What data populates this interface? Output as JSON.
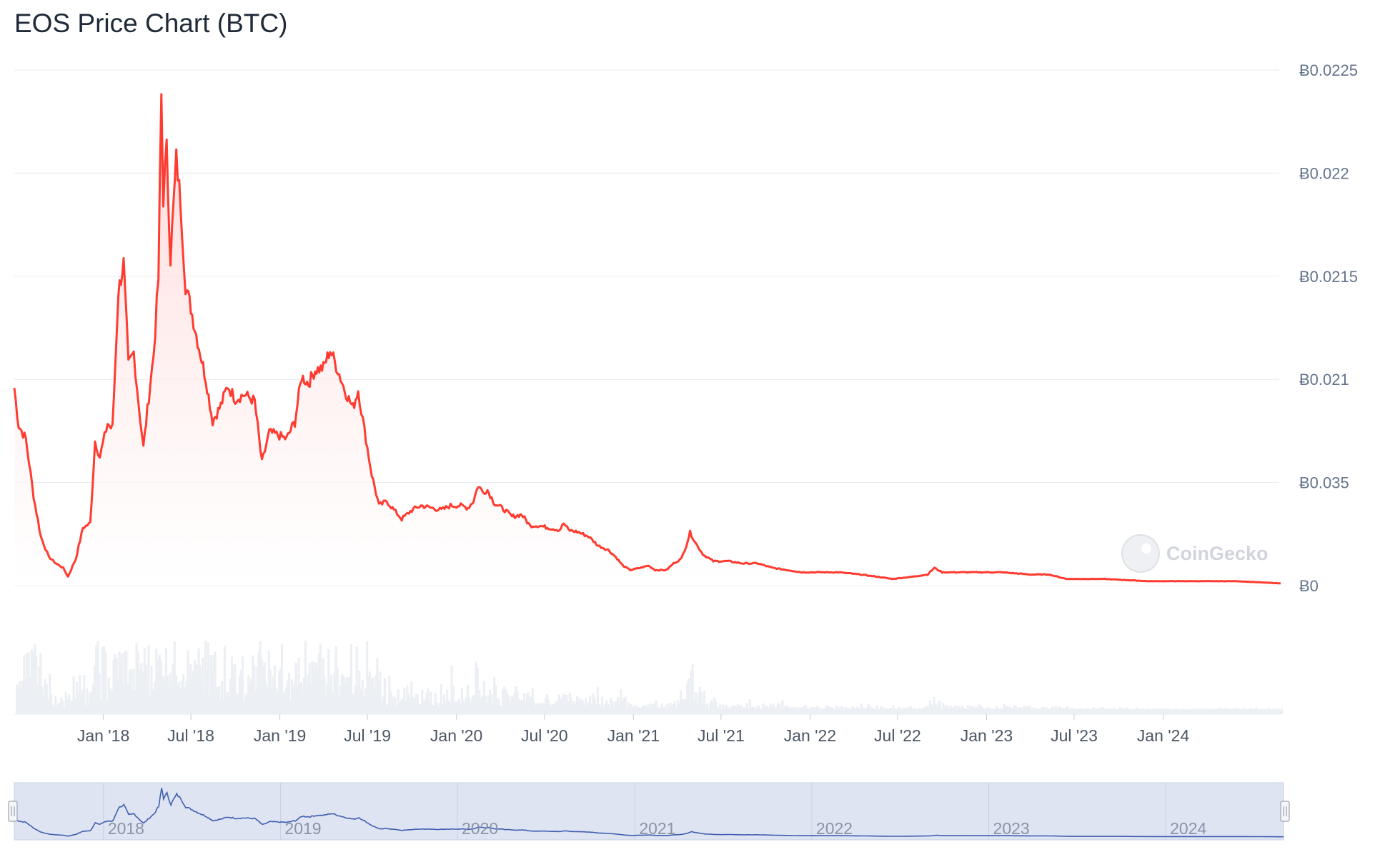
{
  "title": "EOS Price Chart (BTC)",
  "watermark": "CoinGecko",
  "colors": {
    "price_line": "#ff3b30",
    "area_top": "#ffd6d6",
    "volume": "#eceff3",
    "navigator_bg": "#dfe4f2",
    "navigator_line": "#3f5fb0",
    "grid": "#e6e9ee",
    "axis_text": "#64748b"
  },
  "chart_data": {
    "type": "line",
    "title": "EOS Price Chart (BTC)",
    "y_axis_ticks": [
      "Ƀ0",
      "Ƀ0.035",
      "Ƀ0.021",
      "Ƀ0.0215",
      "Ƀ0.022",
      "Ƀ0.0225"
    ],
    "y_axis_position": "right",
    "x_axis_ticks": [
      "Jan '18",
      "Jul '18",
      "Jan '19",
      "Jul '19",
      "Jan '20",
      "Jul '20",
      "Jan '21",
      "Jul '21",
      "Jan '22",
      "Jul '22",
      "Jan '23",
      "Jul '23",
      "Jan '24"
    ],
    "navigator_ticks": [
      "2018",
      "2019",
      "2020",
      "2021",
      "2022",
      "2023",
      "2024"
    ],
    "x_start": "2017-07-01",
    "x_end": "2024-08-31",
    "grid": true,
    "series": [
      {
        "points": [
          [
            "2017-07-01",
            0.00089
          ],
          [
            "2017-07-10",
            0.00072
          ],
          [
            "2017-07-25",
            0.00066
          ],
          [
            "2017-08-10",
            0.0004
          ],
          [
            "2017-08-25",
            0.00022
          ],
          [
            "2017-09-10",
            0.00013
          ],
          [
            "2017-09-25",
            0.0001
          ],
          [
            "2017-10-10",
            8e-05
          ],
          [
            "2017-10-20",
            4e-05
          ],
          [
            "2017-11-05",
            0.00012
          ],
          [
            "2017-11-20",
            0.00026
          ],
          [
            "2017-12-05",
            0.00028
          ],
          [
            "2017-12-15",
            0.00065
          ],
          [
            "2017-12-25",
            0.00058
          ],
          [
            "2018-01-10",
            0.00073
          ],
          [
            "2018-01-20",
            0.0007
          ],
          [
            "2018-02-01",
            0.00132
          ],
          [
            "2018-02-12",
            0.00145
          ],
          [
            "2018-02-22",
            0.00099
          ],
          [
            "2018-03-05",
            0.00105
          ],
          [
            "2018-03-15",
            0.00082
          ],
          [
            "2018-03-25",
            0.00062
          ],
          [
            "2018-04-05",
            0.00085
          ],
          [
            "2018-04-15",
            0.00104
          ],
          [
            "2018-04-25",
            0.00138
          ],
          [
            "2018-05-01",
            0.0022
          ],
          [
            "2018-05-05",
            0.00175
          ],
          [
            "2018-05-12",
            0.00196
          ],
          [
            "2018-05-20",
            0.00148
          ],
          [
            "2018-06-01",
            0.00192
          ],
          [
            "2018-06-10",
            0.00172
          ],
          [
            "2018-06-20",
            0.00135
          ],
          [
            "2018-07-01",
            0.00125
          ],
          [
            "2018-07-15",
            0.0011
          ],
          [
            "2018-08-01",
            0.00093
          ],
          [
            "2018-08-15",
            0.00074
          ],
          [
            "2018-09-01",
            0.00081
          ],
          [
            "2018-09-15",
            0.0009
          ],
          [
            "2018-10-01",
            0.00084
          ],
          [
            "2018-10-20",
            0.00086
          ],
          [
            "2018-11-10",
            0.00083
          ],
          [
            "2018-11-25",
            0.00055
          ],
          [
            "2018-12-10",
            0.00069
          ],
          [
            "2018-12-25",
            0.00068
          ],
          [
            "2019-01-15",
            0.00066
          ],
          [
            "2019-02-01",
            0.00074
          ],
          [
            "2019-02-15",
            0.00094
          ],
          [
            "2019-03-01",
            0.00091
          ],
          [
            "2019-03-15",
            0.00097
          ],
          [
            "2019-04-01",
            0.00098
          ],
          [
            "2019-04-15",
            0.00106
          ],
          [
            "2019-05-01",
            0.00097
          ],
          [
            "2019-05-15",
            0.00088
          ],
          [
            "2019-06-01",
            0.0008
          ],
          [
            "2019-06-12",
            0.00088
          ],
          [
            "2019-06-25",
            0.0007
          ],
          [
            "2019-07-10",
            0.0005
          ],
          [
            "2019-07-25",
            0.00036
          ],
          [
            "2019-08-10",
            0.00038
          ],
          [
            "2019-08-25",
            0.00034
          ],
          [
            "2019-09-10",
            0.0003
          ],
          [
            "2019-10-01",
            0.00034
          ],
          [
            "2019-10-20",
            0.00036
          ],
          [
            "2019-11-10",
            0.00035
          ],
          [
            "2019-12-01",
            0.00034
          ],
          [
            "2019-12-20",
            0.00036
          ],
          [
            "2020-01-10",
            0.00036
          ],
          [
            "2020-01-25",
            0.00035
          ],
          [
            "2020-02-05",
            0.00038
          ],
          [
            "2020-02-15",
            0.00045
          ],
          [
            "2020-02-25",
            0.00042
          ],
          [
            "2020-03-05",
            0.00043
          ],
          [
            "2020-03-20",
            0.00037
          ],
          [
            "2020-04-10",
            0.00034
          ],
          [
            "2020-04-25",
            0.00031
          ],
          [
            "2020-05-15",
            0.00032
          ],
          [
            "2020-06-01",
            0.00027
          ],
          [
            "2020-06-20",
            0.00027
          ],
          [
            "2020-07-10",
            0.00026
          ],
          [
            "2020-08-01",
            0.00025
          ],
          [
            "2020-08-10",
            0.00028
          ],
          [
            "2020-08-20",
            0.00025
          ],
          [
            "2020-09-10",
            0.00024
          ],
          [
            "2020-10-01",
            0.00022
          ],
          [
            "2020-10-20",
            0.00018
          ],
          [
            "2020-11-10",
            0.00016
          ],
          [
            "2020-11-25",
            0.00013
          ],
          [
            "2020-12-10",
            9e-05
          ],
          [
            "2020-12-25",
            7e-05
          ],
          [
            "2021-01-15",
            8e-05
          ],
          [
            "2021-02-01",
            9e-05
          ],
          [
            "2021-02-15",
            7e-05
          ],
          [
            "2021-03-10",
            7e-05
          ],
          [
            "2021-03-25",
            0.0001
          ],
          [
            "2021-04-10",
            0.00012
          ],
          [
            "2021-04-20",
            0.00018
          ],
          [
            "2021-04-28",
            0.00024
          ],
          [
            "2021-05-10",
            0.00019
          ],
          [
            "2021-05-25",
            0.00014
          ],
          [
            "2021-06-15",
            0.00011
          ],
          [
            "2021-07-15",
            0.00011
          ],
          [
            "2021-08-15",
            0.0001
          ],
          [
            "2021-09-15",
            0.0001
          ],
          [
            "2021-10-15",
            8e-05
          ],
          [
            "2021-11-15",
            7e-05
          ],
          [
            "2021-12-15",
            6e-05
          ],
          [
            "2022-01-20",
            6e-05
          ],
          [
            "2022-03-01",
            6e-05
          ],
          [
            "2022-04-15",
            5e-05
          ],
          [
            "2022-05-20",
            4e-05
          ],
          [
            "2022-06-20",
            3e-05
          ],
          [
            "2022-08-01",
            4e-05
          ],
          [
            "2022-09-01",
            5e-05
          ],
          [
            "2022-09-15",
            8e-05
          ],
          [
            "2022-10-01",
            6e-05
          ],
          [
            "2022-11-01",
            6e-05
          ],
          [
            "2022-12-15",
            6e-05
          ],
          [
            "2023-02-01",
            6e-05
          ],
          [
            "2023-04-01",
            5e-05
          ],
          [
            "2023-05-10",
            5e-05
          ],
          [
            "2023-06-15",
            3e-05
          ],
          [
            "2023-09-01",
            3e-05
          ],
          [
            "2023-12-01",
            2e-05
          ],
          [
            "2024-03-01",
            2e-05
          ],
          [
            "2024-06-01",
            2e-05
          ],
          [
            "2024-08-31",
            1e-05
          ]
        ]
      }
    ]
  }
}
